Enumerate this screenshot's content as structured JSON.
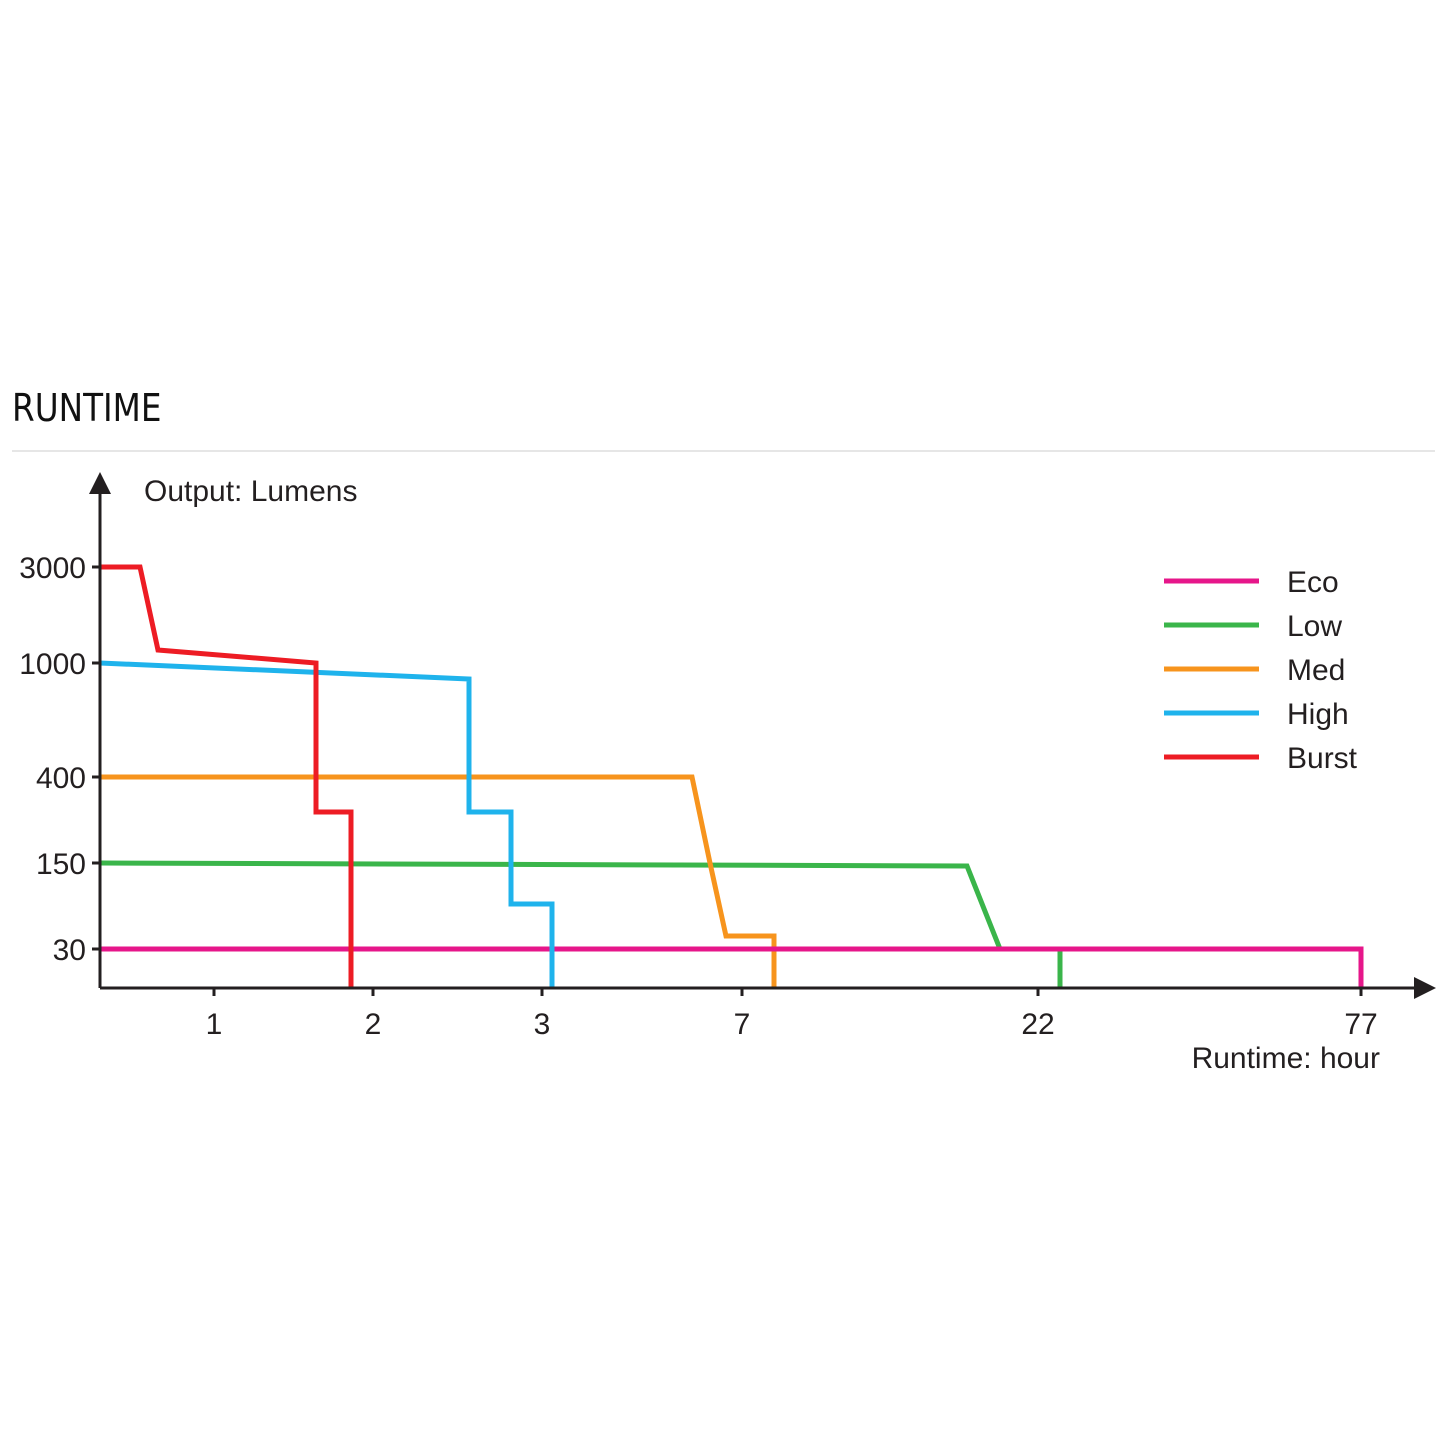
{
  "section": {
    "title": "RUNTIME"
  },
  "chart_data": {
    "type": "line",
    "title": "",
    "ylabel": "Output: Lumens",
    "xlabel": "Runtime: hour",
    "x_scale": "categorical-nonlinear",
    "y_scale": "categorical-nonlinear",
    "x_ticks": [
      "1",
      "2",
      "3",
      "7",
      "22",
      "77"
    ],
    "y_ticks": [
      "30",
      "150",
      "400",
      "1000",
      "3000"
    ],
    "grid": false,
    "legend_position": "top-right",
    "series": [
      {
        "name": "Eco",
        "color": "#e6168a",
        "points": [
          [
            0,
            30
          ],
          [
            77,
            30
          ],
          [
            77,
            0
          ]
        ]
      },
      {
        "name": "Low",
        "color": "#3ab54a",
        "points": [
          [
            0,
            150
          ],
          [
            19,
            145
          ],
          [
            21,
            30
          ],
          [
            23,
            30
          ],
          [
            23,
            0
          ]
        ]
      },
      {
        "name": "Med",
        "color": "#f7941d",
        "points": [
          [
            0,
            400
          ],
          [
            6.2,
            400
          ],
          [
            6.6,
            150
          ],
          [
            7.7,
            40
          ],
          [
            8.3,
            40
          ],
          [
            8.3,
            0
          ]
        ]
      },
      {
        "name": "High",
        "color": "#1fb3ec",
        "points": [
          [
            0,
            1000
          ],
          [
            2.6,
            900
          ],
          [
            2.6,
            300
          ],
          [
            2.8,
            300
          ],
          [
            2.8,
            90
          ],
          [
            3.05,
            90
          ],
          [
            3.05,
            0
          ]
        ]
      },
      {
        "name": "Burst",
        "color": "#ed1c24",
        "points": [
          [
            0,
            3000
          ],
          [
            0.25,
            3000
          ],
          [
            0.45,
            1300
          ],
          [
            1.6,
            1000
          ],
          [
            1.6,
            300
          ],
          [
            1.9,
            300
          ],
          [
            1.9,
            0
          ]
        ]
      }
    ]
  }
}
